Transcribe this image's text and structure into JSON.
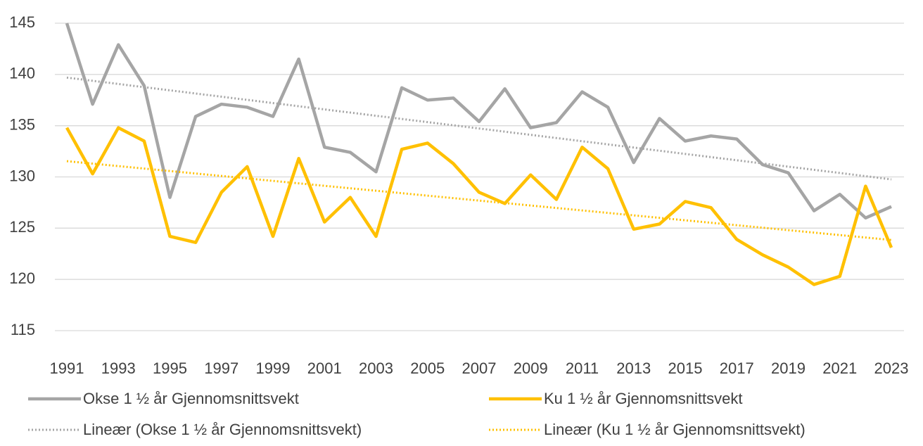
{
  "chart_data": {
    "type": "line",
    "x": [
      1991,
      1992,
      1993,
      1994,
      1995,
      1996,
      1997,
      1998,
      1999,
      2000,
      2001,
      2002,
      2003,
      2004,
      2005,
      2006,
      2007,
      2008,
      2009,
      2010,
      2011,
      2012,
      2013,
      2014,
      2015,
      2016,
      2017,
      2018,
      2019,
      2020,
      2021,
      2022,
      2023
    ],
    "xlim": [
      1991,
      2023
    ],
    "xticks": [
      1991,
      1993,
      1995,
      1997,
      1999,
      2001,
      2003,
      2005,
      2007,
      2009,
      2011,
      2013,
      2015,
      2017,
      2019,
      2021,
      2023
    ],
    "ylim": [
      115,
      145
    ],
    "yticks": [
      115,
      120,
      125,
      130,
      135,
      140,
      145
    ],
    "grid": true,
    "legend": "bottom",
    "series": [
      {
        "name": "Okse 1 ½ år Gjennomsnittsvekt",
        "color": "#a5a5a5",
        "trendline_name": "Lineær (Okse 1 ½ år Gjennomsnittsvekt)",
        "values": [
          145.0,
          137.1,
          142.9,
          138.9,
          128.0,
          135.9,
          137.1,
          136.8,
          135.9,
          141.5,
          132.9,
          132.4,
          130.5,
          138.7,
          137.5,
          137.7,
          135.4,
          138.6,
          134.8,
          135.3,
          138.3,
          136.8,
          131.4,
          135.7,
          133.5,
          134.0,
          133.7,
          131.2,
          130.4,
          126.7,
          128.3,
          126.0,
          127.1
        ]
      },
      {
        "name": "Ku 1 ½ år Gjennomsnittsvekt",
        "color": "#ffc000",
        "trendline_name": "Lineær (Ku 1 ½ år Gjennomsnittsvekt)",
        "values": [
          134.8,
          130.3,
          134.8,
          133.5,
          124.2,
          123.6,
          128.5,
          131.0,
          124.2,
          131.8,
          125.6,
          128.0,
          124.2,
          132.7,
          133.3,
          131.3,
          128.5,
          127.4,
          130.2,
          127.8,
          132.9,
          130.8,
          124.9,
          125.4,
          127.6,
          127.0,
          123.9,
          122.4,
          121.2,
          119.5,
          120.3,
          129.1,
          123.1
        ]
      }
    ]
  }
}
